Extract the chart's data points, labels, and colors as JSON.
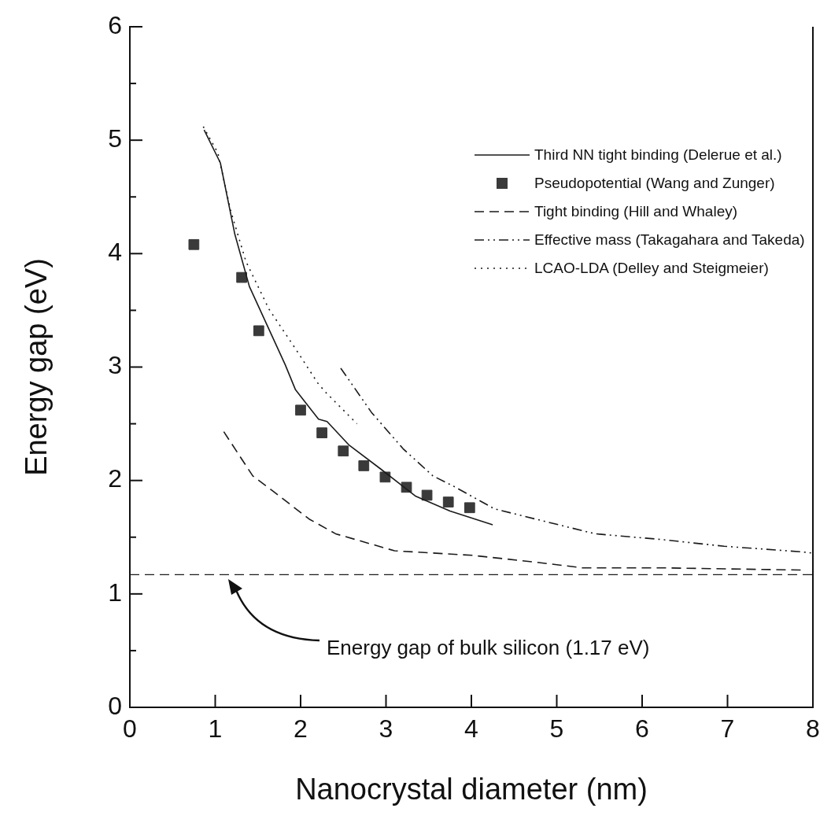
{
  "chart_data": {
    "type": "line",
    "xlabel": "Nanocrystal diameter (nm)",
    "ylabel": "Energy gap (eV)",
    "xlim": [
      0,
      8
    ],
    "xticks": [
      0,
      1,
      2,
      3,
      4,
      5,
      6,
      7,
      8
    ],
    "ylim": [
      0,
      6
    ],
    "yticks": [
      0,
      {
        "value": 0.5,
        "label": null
      },
      1,
      {
        "value": 1.5,
        "label": null
      },
      2,
      {
        "value": 2.5,
        "label": null
      },
      3,
      {
        "value": 3.5,
        "label": null
      },
      4,
      {
        "value": 4.5,
        "label": null
      },
      5,
      {
        "value": 5.5,
        "label": null
      },
      6
    ],
    "grid": false,
    "legend": "top right",
    "marker": "none",
    "series": [
      {
        "name": "Third NN tight binding (Delerue et al.)",
        "line_style": "solid",
        "color": "#1a1a1a",
        "x": [
          0.87,
          1.06,
          1.23,
          1.4,
          1.82,
          1.94,
          2.21,
          2.31,
          2.57,
          2.94,
          3.35,
          3.75,
          4.25
        ],
        "values": [
          5.09,
          4.8,
          4.17,
          3.71,
          3.02,
          2.8,
          2.54,
          2.52,
          2.31,
          2.1,
          1.86,
          1.73,
          1.61
        ]
      },
      {
        "name": "Pseudopotential (Wang and Zunger)",
        "type": "scatter",
        "marker": "square",
        "color": "#3a3a3a",
        "x": [
          0.75,
          1.31,
          1.51,
          2.0,
          2.25,
          2.5,
          2.74,
          2.99,
          3.24,
          3.48,
          3.73,
          3.98
        ],
        "values": [
          4.08,
          3.79,
          3.32,
          2.62,
          2.42,
          2.26,
          2.13,
          2.03,
          1.94,
          1.87,
          1.81,
          1.76
        ]
      },
      {
        "name": "Tight binding (Hill and Whaley)",
        "line_style": "dashed",
        "color": "#1a1a1a",
        "x": [
          1.1,
          1.44,
          1.67,
          2.1,
          2.41,
          3.1,
          4.01,
          4.75,
          5.3,
          5.48,
          6.22,
          7.88
        ],
        "values": [
          2.43,
          2.04,
          1.91,
          1.66,
          1.53,
          1.38,
          1.34,
          1.28,
          1.23,
          1.23,
          1.23,
          1.21
        ]
      },
      {
        "name": "Effective mass (Takagahara and Takeda)",
        "line_style": "dashdot",
        "color": "#1a1a1a",
        "x": [
          2.47,
          2.83,
          3.2,
          3.55,
          3.79,
          4.27,
          4.75,
          5.45,
          6.22,
          6.96,
          7.88,
          8.0
        ],
        "values": [
          2.99,
          2.6,
          2.28,
          2.04,
          1.95,
          1.75,
          1.66,
          1.53,
          1.48,
          1.42,
          1.37,
          1.36
        ]
      },
      {
        "name": "LCAO-LDA (Delley and Steigmeier)",
        "line_style": "dotted",
        "color": "#1a1a1a",
        "x": [
          0.86,
          1.03,
          1.18,
          1.36,
          1.63,
          1.95,
          2.2,
          2.29,
          2.66
        ],
        "values": [
          5.12,
          4.89,
          4.38,
          3.93,
          3.51,
          3.15,
          2.86,
          2.78,
          2.5
        ]
      }
    ],
    "ref_lines": [
      {
        "axis": "y",
        "value": 1.17,
        "label": null,
        "line_style": "dashed",
        "color": "#1a1a1a"
      }
    ],
    "annotations": [
      "Energy gap of bulk silicon (1.17 eV)"
    ]
  }
}
